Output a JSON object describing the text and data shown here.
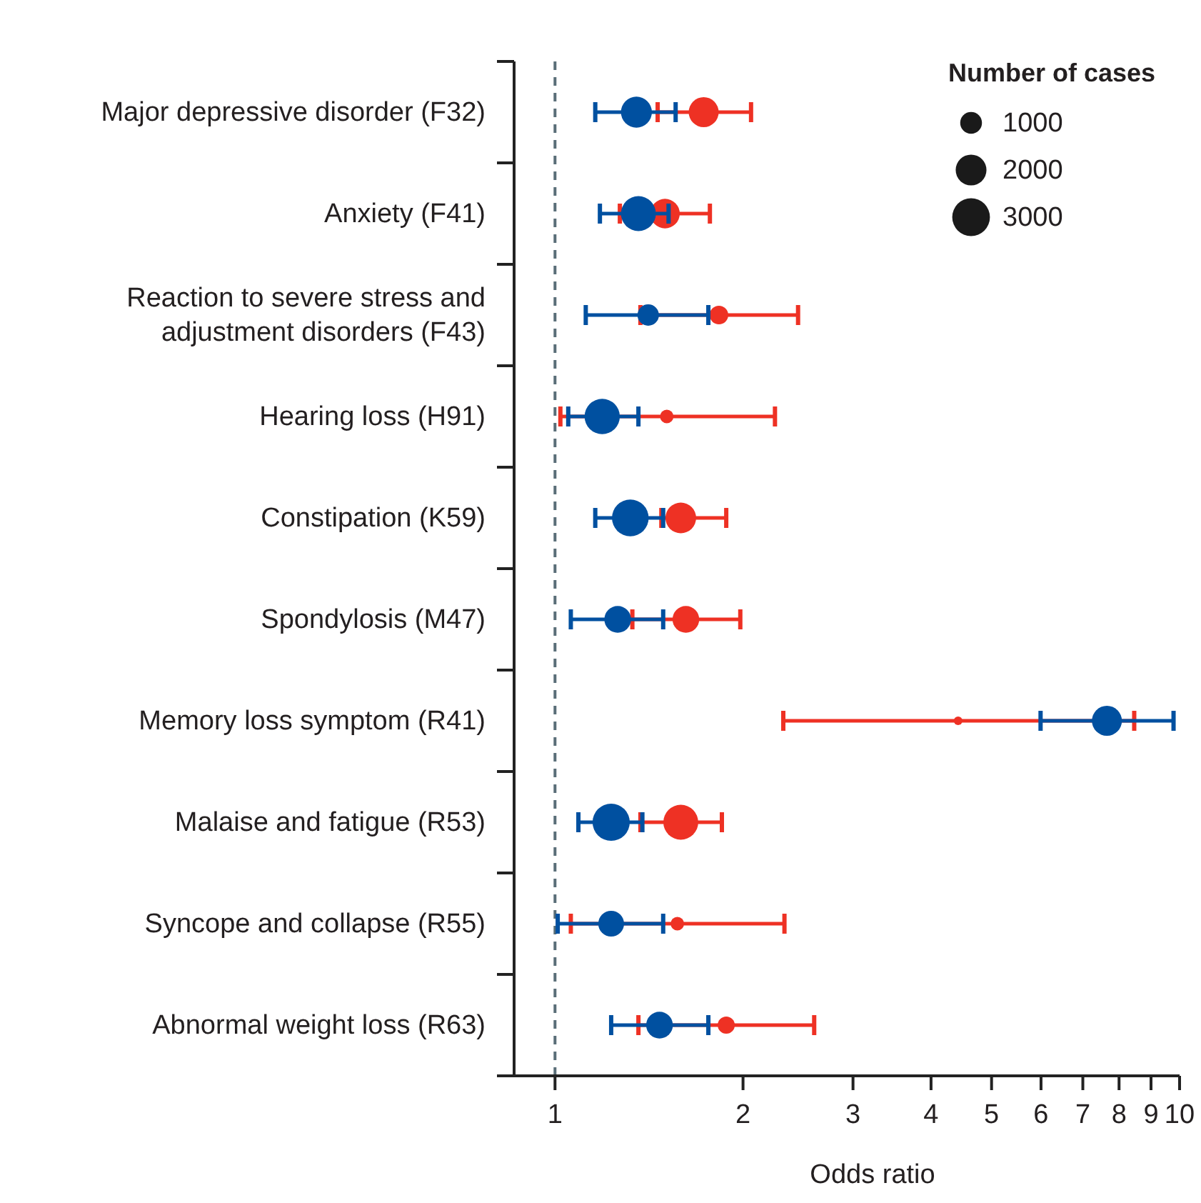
{
  "chart_data": {
    "type": "bubble",
    "orientation": "horizontal",
    "xlabel": "Odds ratio",
    "legend_title": "Number of cases",
    "log": "x",
    "categories": [
      "Major depressive disorder (F32)",
      "Anxiety (F41)",
      "Reaction to severe stress and adjustment disorders (F43)",
      "Hearing loss (H91)",
      "Constipation (K59)",
      "Spondylosis (M47)",
      "Memory loss symptom (R41)",
      "Malaise and fatigue (R53)",
      "Syncope and collapse (R55)",
      "Abnormal weight loss (R63)"
    ],
    "xlim": [
      0.86,
      10
    ],
    "xticks": [
      1,
      2,
      3,
      4,
      5,
      6,
      7,
      8,
      9,
      10
    ],
    "size_legend": [
      1000,
      2000,
      3000
    ],
    "ref_lines": [
      {
        "axis": "x",
        "value": 1,
        "color": "#5a6e78",
        "line_style": "dashed"
      }
    ],
    "series": [
      {
        "color": "#ee3124",
        "values": [
          1.73,
          1.5,
          1.83,
          1.51,
          1.59,
          1.62,
          4.42,
          1.59,
          1.57,
          1.88
        ],
        "sizes": [
          1900,
          1840,
          730,
          380,
          1980,
          1500,
          160,
          2570,
          380,
          620
        ],
        "errors": [
          [
            1.46,
            2.06
          ],
          [
            1.27,
            1.77
          ],
          [
            1.37,
            2.45
          ],
          [
            1.02,
            2.25
          ],
          [
            1.48,
            1.88
          ],
          [
            1.33,
            1.98
          ],
          [
            2.32,
            8.46
          ],
          [
            1.37,
            1.85
          ],
          [
            1.06,
            2.33
          ],
          [
            1.36,
            2.6
          ]
        ]
      },
      {
        "color": "#0050a0",
        "values": [
          1.35,
          1.36,
          1.41,
          1.19,
          1.32,
          1.26,
          7.65,
          1.23,
          1.23,
          1.47
        ],
        "sizes": [
          2020,
          2570,
          970,
          2620,
          2840,
          1500,
          1900,
          2920,
          1400,
          1500
        ],
        "errors": [
          [
            1.16,
            1.56
          ],
          [
            1.18,
            1.52
          ],
          [
            1.12,
            1.76
          ],
          [
            1.05,
            1.36
          ],
          [
            1.16,
            1.49
          ],
          [
            1.06,
            1.49
          ],
          [
            5.99,
            9.78
          ],
          [
            1.09,
            1.38
          ],
          [
            1.01,
            1.49
          ],
          [
            1.23,
            1.76
          ]
        ]
      }
    ]
  }
}
